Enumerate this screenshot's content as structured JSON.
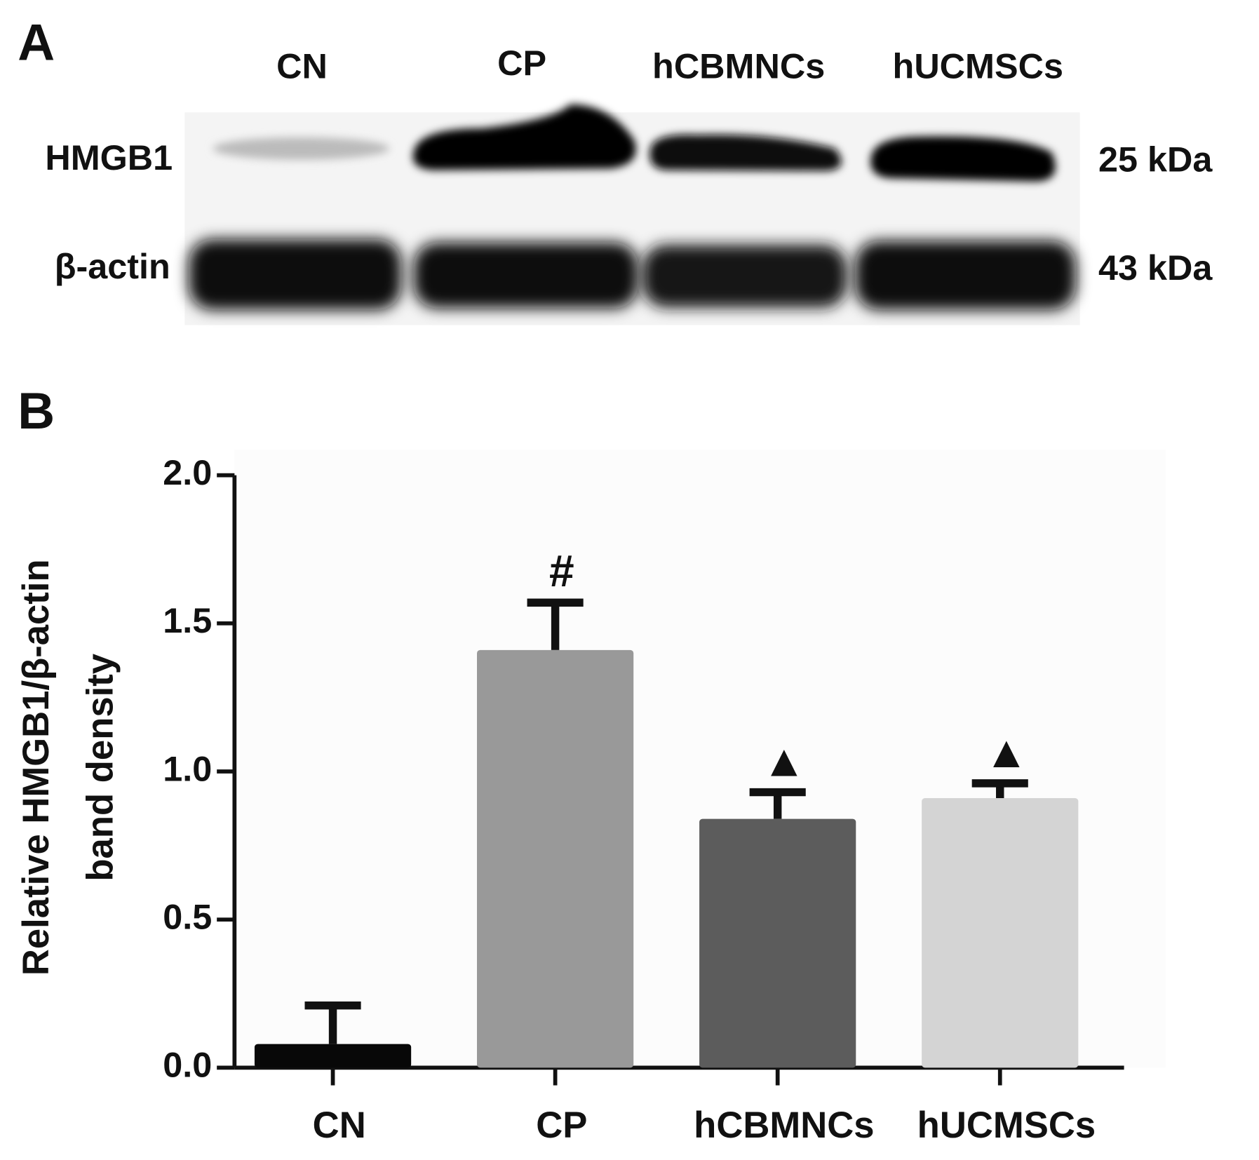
{
  "panel_a": {
    "label": "A",
    "lanes": [
      "CN",
      "CP",
      "hCBMNCs",
      "hUCMSCs"
    ],
    "rows": [
      {
        "name": "HMGB1",
        "size": "25 kDa"
      },
      {
        "name": "β-actin",
        "size": "43 kDa"
      }
    ]
  },
  "panel_b": {
    "label": "B"
  },
  "chart_data": {
    "type": "bar",
    "ylabel": [
      "Relative HMGB1/β-actin",
      "band density"
    ],
    "categories": [
      "CN",
      "CP",
      "hCBMNCs",
      "hUCMSCs"
    ],
    "values": [
      0.08,
      1.41,
      0.84,
      0.91
    ],
    "errors": [
      0.13,
      0.16,
      0.09,
      0.05
    ],
    "colors": [
      "#080808",
      "#999999",
      "#5c5c5c",
      "#d4d4d4"
    ],
    "annotations": [
      null,
      "#",
      "▲",
      "▲"
    ],
    "ylim": [
      0,
      2
    ],
    "yticks": [
      {
        "value": 0,
        "label": "0.0"
      },
      0.5,
      {
        "value": 1,
        "label": "1.0"
      },
      1.5,
      {
        "value": 2,
        "label": "2.0"
      }
    ]
  }
}
